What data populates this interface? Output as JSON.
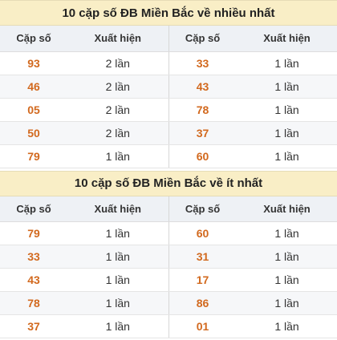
{
  "section1": {
    "title": "10 cặp số ĐB Miền Bắc về nhiều nhất",
    "headers": {
      "pair": "Cặp số",
      "count": "Xuất hiện"
    },
    "left": [
      {
        "pair": "93",
        "count": "2 lần"
      },
      {
        "pair": "46",
        "count": "2 lần"
      },
      {
        "pair": "05",
        "count": "2 lần"
      },
      {
        "pair": "50",
        "count": "2 lần"
      },
      {
        "pair": "79",
        "count": "1 lần"
      }
    ],
    "right": [
      {
        "pair": "33",
        "count": "1 lần"
      },
      {
        "pair": "43",
        "count": "1 lần"
      },
      {
        "pair": "78",
        "count": "1 lần"
      },
      {
        "pair": "37",
        "count": "1 lần"
      },
      {
        "pair": "60",
        "count": "1 lần"
      }
    ]
  },
  "section2": {
    "title": "10 cặp số ĐB Miền Bắc về ít nhất",
    "headers": {
      "pair": "Cặp số",
      "count": "Xuất hiện"
    },
    "left": [
      {
        "pair": "79",
        "count": "1 lần"
      },
      {
        "pair": "33",
        "count": "1 lần"
      },
      {
        "pair": "43",
        "count": "1 lần"
      },
      {
        "pair": "78",
        "count": "1 lần"
      },
      {
        "pair": "37",
        "count": "1 lần"
      }
    ],
    "right": [
      {
        "pair": "60",
        "count": "1 lần"
      },
      {
        "pair": "31",
        "count": "1 lần"
      },
      {
        "pair": "17",
        "count": "1 lần"
      },
      {
        "pair": "86",
        "count": "1 lần"
      },
      {
        "pair": "01",
        "count": "1 lần"
      }
    ]
  },
  "colors": {
    "title_bg": "#f9eec6",
    "header_bg": "#eef1f5",
    "number": "#d2691e"
  }
}
